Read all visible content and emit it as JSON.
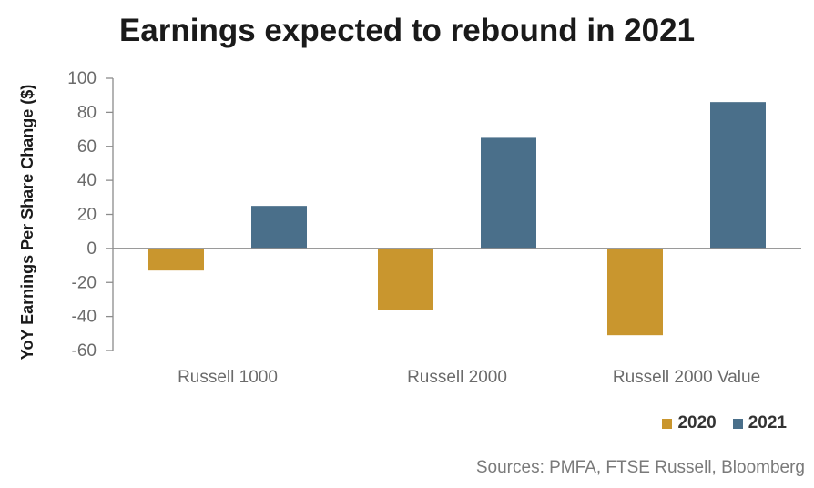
{
  "title": "Earnings expected to rebound in 2021",
  "source": "Sources: PMFA, FTSE Russell, Bloomberg",
  "colors": {
    "2020": "#C9962E",
    "2021": "#4A6F8A",
    "axis": "#8c8c8c",
    "tick_text": "#6b6b6b"
  },
  "chart_data": {
    "type": "bar",
    "title": "Earnings expected to rebound in 2021",
    "ylabel": "YoY Earnings Per Share Change ($)",
    "xlabel": "",
    "categories": [
      "Russell 1000",
      "Russell 2000",
      "Russell 2000 Value"
    ],
    "series": [
      {
        "name": "2020",
        "values": [
          -13,
          -36,
          -51
        ]
      },
      {
        "name": "2021",
        "values": [
          25,
          65,
          86
        ]
      }
    ],
    "ylim": [
      -60,
      100
    ],
    "yticks": [
      100,
      80,
      60,
      40,
      20,
      0,
      -20,
      -40,
      -60
    ],
    "ytick_labels": [
      "100",
      "80",
      "60",
      "40",
      "20",
      "0",
      "-20",
      "-40",
      "-60"
    ],
    "grid": false,
    "legend": "bottom-right"
  }
}
